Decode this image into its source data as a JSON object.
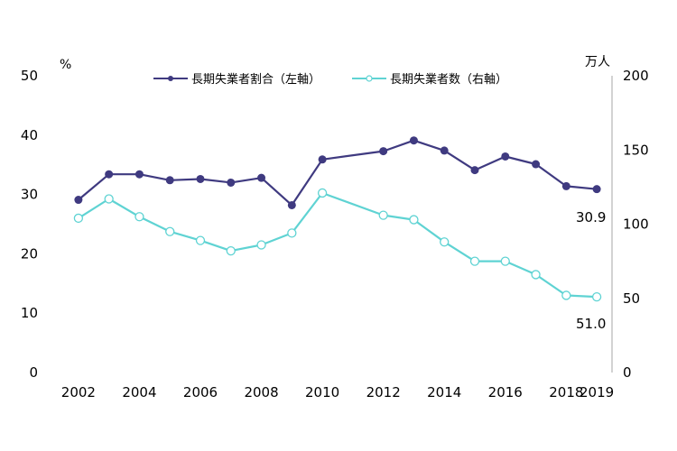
{
  "chart_data": {
    "type": "line",
    "left_axis": {
      "unit": "%",
      "ylim": [
        0,
        50
      ],
      "ticks": [
        "0",
        "10",
        "20",
        "30",
        "40",
        "50"
      ]
    },
    "right_axis": {
      "unit": "万人",
      "ylim": [
        0,
        200
      ],
      "ticks": [
        "0",
        "50",
        "100",
        "150",
        "200"
      ]
    },
    "x_ticks": [
      "2002",
      "2004",
      "2006",
      "2008",
      "2010",
      "2012",
      "2014",
      "2016",
      "2018",
      "2019"
    ],
    "legend_position": "top",
    "grid": false,
    "series": [
      {
        "name": "長期失業者割合（左軸）",
        "axis": "left",
        "color": "#3f3a80",
        "marker": "filled-circle",
        "x": [
          2002,
          2003,
          2004,
          2005,
          2006,
          2007,
          2008,
          2009,
          2010,
          2012,
          2013,
          2014,
          2015,
          2016,
          2017,
          2018,
          2019
        ],
        "values": [
          29.1,
          33.4,
          33.4,
          32.4,
          32.6,
          32.0,
          32.8,
          28.2,
          35.9,
          37.3,
          39.1,
          37.4,
          34.1,
          36.4,
          35.1,
          31.4,
          30.9
        ]
      },
      {
        "name": "長期失業者数（右軸）",
        "axis": "right",
        "color": "#5fd3d3",
        "marker": "hollow-circle",
        "x": [
          2002,
          2003,
          2004,
          2005,
          2006,
          2007,
          2008,
          2009,
          2010,
          2012,
          2013,
          2014,
          2015,
          2016,
          2017,
          2018,
          2019
        ],
        "values": [
          104,
          117,
          105,
          95,
          89,
          82,
          86,
          94,
          121,
          106,
          103,
          88,
          75,
          75,
          66,
          52,
          51.0
        ]
      }
    ],
    "end_labels": [
      "30.9",
      "51.0"
    ]
  }
}
